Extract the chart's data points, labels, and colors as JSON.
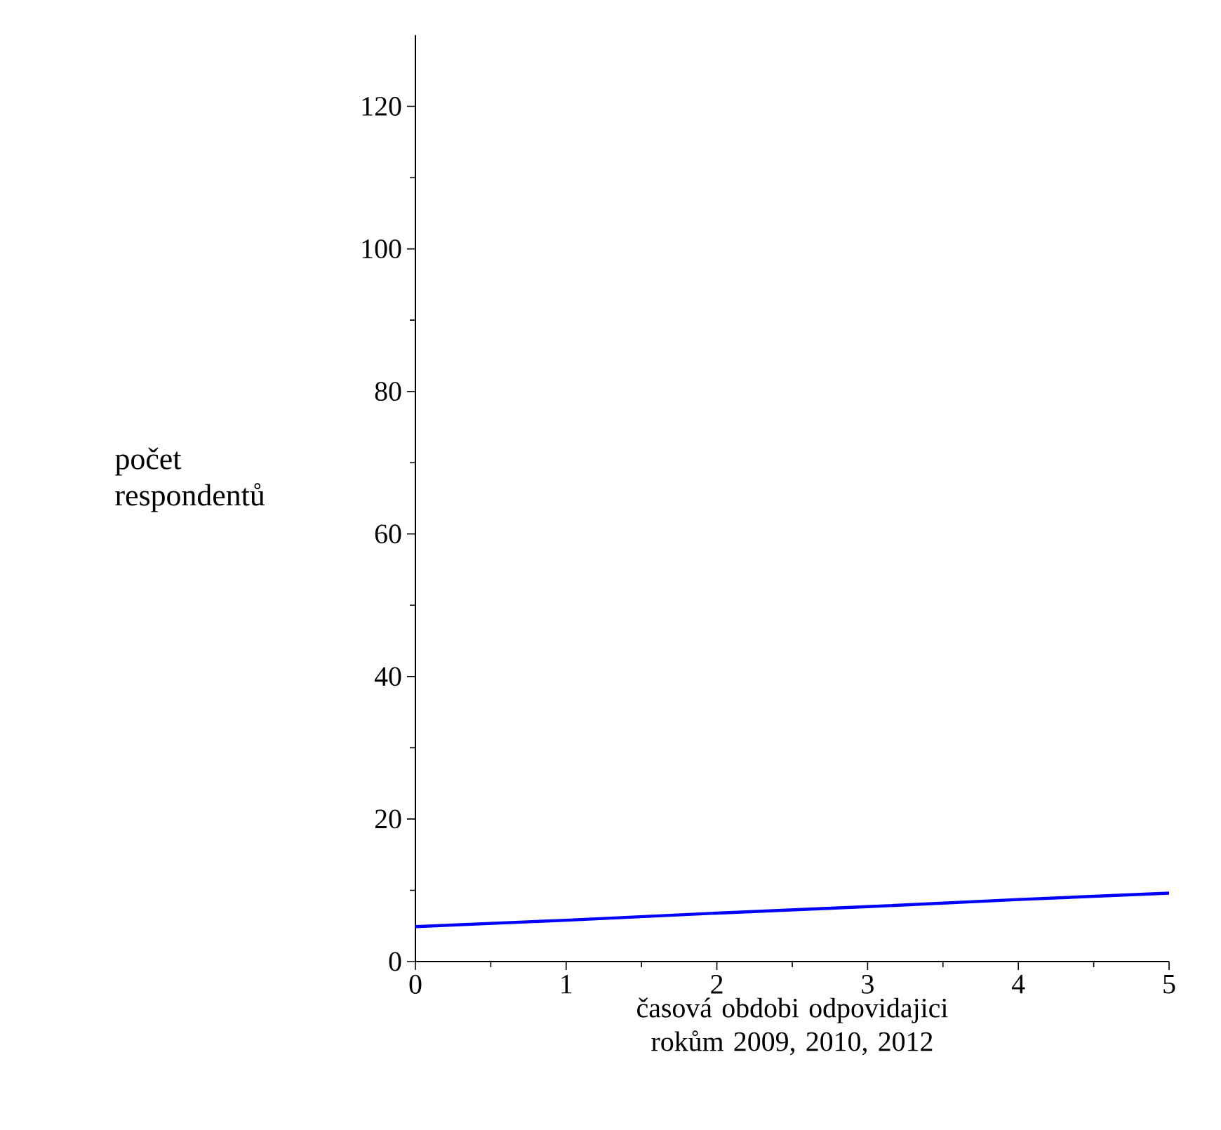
{
  "chart_data": {
    "type": "line",
    "xlabel": "časová obdobi odpovidajici rokům 2009, 2010, 2012",
    "ylabel": "počet respondentů",
    "x": [
      0,
      1,
      2,
      3,
      4,
      5
    ],
    "series": [
      {
        "color": "#0000ff",
        "values": [
          4.9,
          5.8,
          6.8,
          7.7,
          8.7,
          9.6
        ]
      }
    ],
    "xlim": [
      0,
      5
    ],
    "ylim": [
      0,
      130
    ],
    "xticks": [
      0,
      1,
      2,
      3,
      4,
      5
    ],
    "yticks": [
      0,
      20,
      40,
      60,
      80,
      100,
      120
    ],
    "grid": false
  }
}
